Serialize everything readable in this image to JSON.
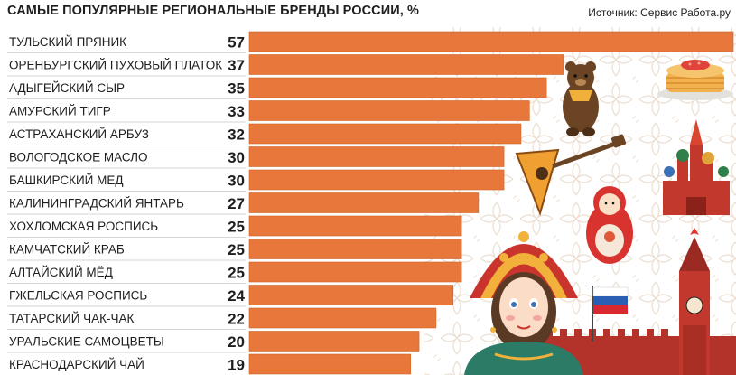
{
  "header": {
    "title": "САМЫЕ ПОПУЛЯРНЫЕ РЕГИОНАЛЬНЫЕ БРЕНДЫ РОССИИ, %",
    "source": "Источник: Сервис Работа.ру"
  },
  "colors": {
    "bar": "#e8773b",
    "bar_edge": "#cf6325",
    "text": "#1e1e1e",
    "pattern": "#eadccd"
  },
  "decor_icons": [
    "bear-icon",
    "pancakes-icon",
    "balalaika-icon",
    "cathedral-icon",
    "matryoshka-icon",
    "kremlin-tower-icon",
    "russian-flag-icon",
    "girl-in-kokoshnik-icon"
  ],
  "chart_data": {
    "type": "bar",
    "orientation": "horizontal",
    "title": "САМЫЕ ПОПУЛЯРНЫЕ РЕГИОНАЛЬНЫЕ БРЕНДЫ РОССИИ, %",
    "unit": "%",
    "categories": [
      "ТУЛЬСКИЙ ПРЯНИК",
      "ОРЕНБУРГСКИЙ ПУХОВЫЙ ПЛАТОК",
      "АДЫГЕЙСКИЙ СЫР",
      "АМУРСКИЙ ТИГР",
      "АСТРАХАНСКИЙ АРБУЗ",
      "ВОЛОГОДСКОЕ МАСЛО",
      "БАШКИРСКИЙ МЕД",
      "КАЛИНИНГРАДСКИЙ ЯНТАРЬ",
      "ХОХЛОМСКАЯ РОСПИСЬ",
      "КАМЧАТСКИЙ КРАБ",
      "АЛТАЙСКИЙ МЁД",
      "ГЖЕЛЬСКАЯ РОСПИСЬ",
      "ТАТАРСКИЙ ЧАК-ЧАК",
      "УРАЛЬСКИЕ САМОЦВЕТЫ",
      "КРАСНОДАРСКИЙ ЧАЙ"
    ],
    "values": [
      57,
      37,
      35,
      33,
      32,
      30,
      30,
      27,
      25,
      25,
      25,
      24,
      22,
      20,
      19
    ],
    "xlim": [
      0,
      57
    ],
    "grid": false,
    "legend": "none"
  }
}
